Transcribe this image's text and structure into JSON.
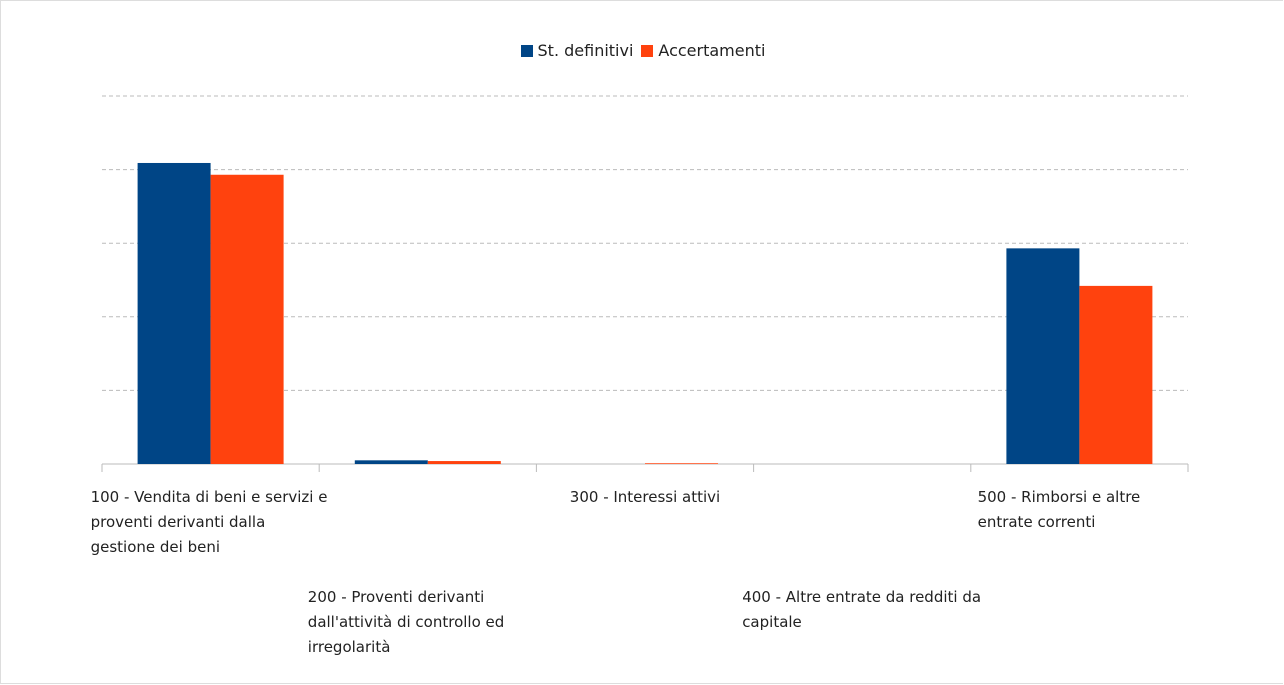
{
  "chart_data": {
    "type": "bar",
    "categories": [
      "100 - Vendita di beni e servizi e proventi derivanti dalla gestione dei beni",
      "200 - Proventi derivanti dall'attività di controllo ed irregolarità",
      "300 - Interessi attivi",
      "400 - Altre entrate da redditi da capitale",
      "500 - Rimborsi e altre entrate correnti"
    ],
    "series": [
      {
        "name": "St. definitivi",
        "color": "#004586",
        "values": [
          4.09,
          0.05,
          0,
          0,
          2.93
        ]
      },
      {
        "name": "Accertamenti",
        "color": "#ff420e",
        "values": [
          3.93,
          0.04,
          0.01,
          0,
          2.42
        ]
      }
    ],
    "ylim": [
      0,
      5
    ],
    "yticks": [
      0,
      1,
      2,
      3,
      4,
      5
    ],
    "grid": true,
    "show_tick_labels": false,
    "legend": "top"
  }
}
